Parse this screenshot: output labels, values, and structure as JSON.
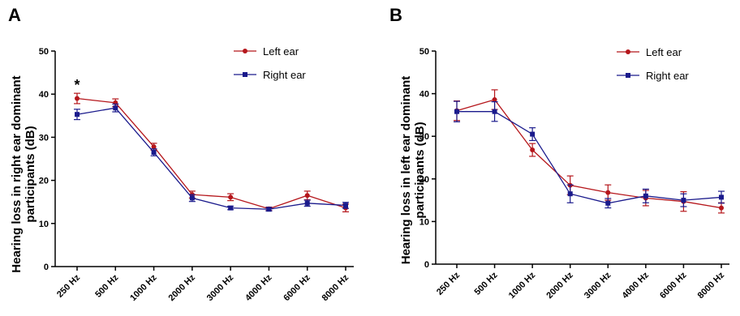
{
  "chart_data": [
    {
      "type": "line",
      "panel_label": "A",
      "ylabel": "Hearing loss in right ear dominant participants (dB)",
      "ylim": [
        0,
        50
      ],
      "yticks": [
        "0",
        "10",
        "20",
        "30",
        "40",
        "50"
      ],
      "categories": [
        "250 Hz",
        "500 Hz",
        "1000 Hz",
        "2000 Hz",
        "3000 Hz",
        "4000 Hz",
        "6000 Hz",
        "8000 Hz"
      ],
      "legend_position": "top-right",
      "annotations": [
        {
          "text": "*",
          "category": "250 Hz"
        }
      ],
      "series": [
        {
          "name": "Left ear",
          "color": "#b5161b",
          "marker": "circle",
          "values": [
            39.0,
            38.0,
            27.8,
            16.7,
            16.1,
            13.4,
            16.5,
            13.6
          ],
          "errors": [
            1.2,
            0.9,
            0.8,
            0.8,
            0.8,
            0.4,
            1.0,
            0.9
          ]
        },
        {
          "name": "Right ear",
          "color": "#1a1a8c",
          "marker": "square",
          "values": [
            35.3,
            36.8,
            26.5,
            15.9,
            13.6,
            13.3,
            14.7,
            14.2
          ],
          "errors": [
            1.2,
            0.9,
            0.8,
            0.8,
            0.4,
            0.4,
            0.7,
            0.7
          ]
        }
      ]
    },
    {
      "type": "line",
      "panel_label": "B",
      "ylabel": "Hearing loss in left ear dominant participants (dB)",
      "ylim": [
        0,
        50
      ],
      "yticks": [
        "0",
        "10",
        "20",
        "30",
        "40",
        "50"
      ],
      "categories": [
        "250 Hz",
        "500 Hz",
        "1000 Hz",
        "2000 Hz",
        "3000 Hz",
        "4000 Hz",
        "6000 Hz",
        "8000 Hz"
      ],
      "legend_position": "top-right",
      "series": [
        {
          "name": "Left ear",
          "color": "#b5161b",
          "marker": "circle",
          "values": [
            36.0,
            38.6,
            26.8,
            18.5,
            16.8,
            15.5,
            14.7,
            13.2
          ],
          "errors": [
            2.3,
            2.3,
            1.5,
            2.2,
            1.8,
            1.8,
            2.3,
            1.2
          ]
        },
        {
          "name": "Right ear",
          "color": "#1a1a8c",
          "marker": "square",
          "values": [
            35.8,
            35.8,
            30.5,
            16.5,
            14.3,
            16.0,
            15.0,
            15.7
          ],
          "errors": [
            2.4,
            2.3,
            1.5,
            2.1,
            1.1,
            1.6,
            1.5,
            1.4
          ]
        }
      ]
    }
  ]
}
